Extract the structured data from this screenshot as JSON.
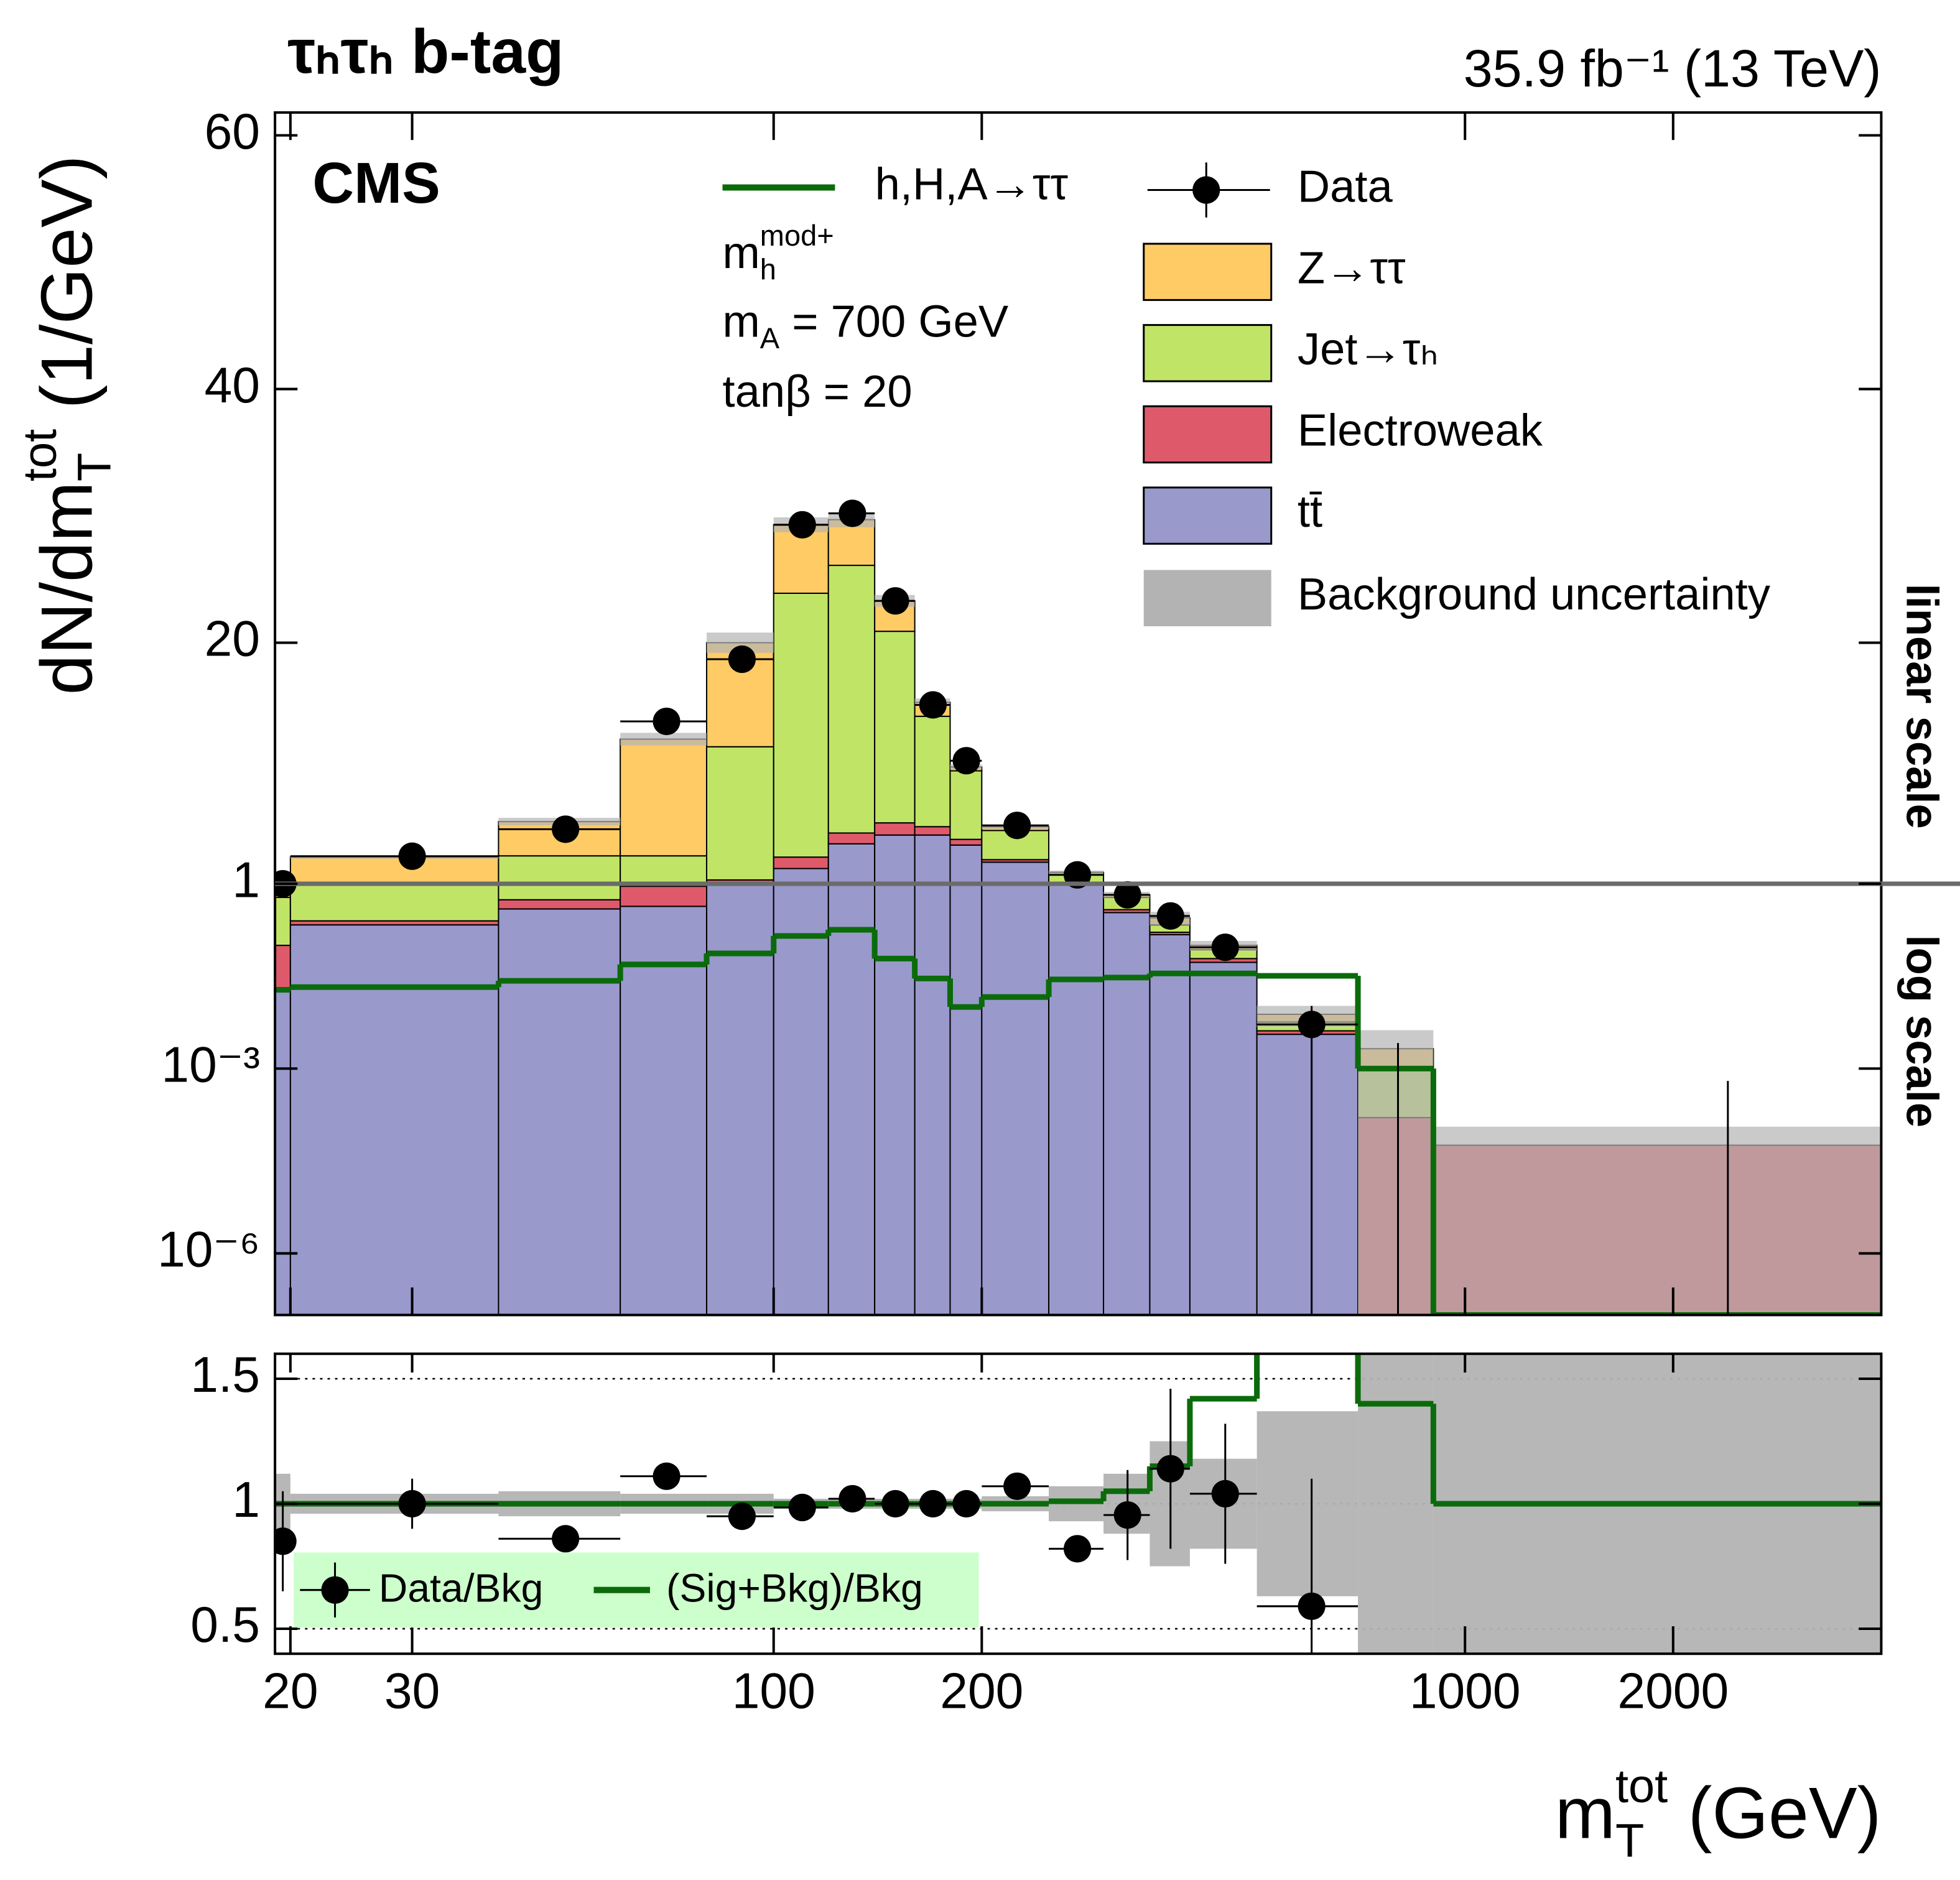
{
  "chart_data": {
    "type": "stacked-histogram",
    "title": "τₕτₕ b-tag",
    "subtitle": "35.9 fb⁻¹ (13 TeV)",
    "experiment": "CMS",
    "annotations": [
      {
        "text": "m",
        "sup": "mod+",
        "sub": "h"
      },
      {
        "text": "m",
        "sub": "A",
        "after": " = 700 GeV"
      },
      {
        "text": "tanβ = 20"
      }
    ],
    "x_label": {
      "text": "m",
      "sup": "tot",
      "sub": "T",
      "after": " (GeV)"
    },
    "y_label": {
      "text": "dN/dm",
      "sup": "tot",
      "sub": "T",
      "after": " (1/GeV)"
    },
    "xscale": "log",
    "xlim": [
      19,
      4000
    ],
    "xticks": [
      20,
      30,
      100,
      200,
      1000,
      2000
    ],
    "bins": [
      19,
      20,
      40,
      60,
      80,
      100,
      120,
      140,
      160,
      180,
      200,
      250,
      300,
      350,
      400,
      500,
      700,
      900,
      4000
    ],
    "ylim": [
      1e-07,
      61.8
    ],
    "ylinear_above": 1,
    "scale_labels": [
      "linear scale",
      "log scale"
    ],
    "yticks": [
      {
        "value": 1e-06,
        "label": "10⁻⁶"
      },
      {
        "value": 0.001,
        "label": "10⁻³"
      },
      1,
      20,
      40,
      60
    ],
    "series": [
      {
        "name": "tt̄",
        "color": "#9999cc",
        "values": [
          0.02,
          0.215,
          0.39,
          0.43,
          1.0,
          2.2,
          4.15,
          4.84,
          4.84,
          4.05,
          2.7,
          1.0,
          0.34,
          0.149,
          0.053,
          0.0036,
          0,
          0
        ]
      },
      {
        "name": "Electroweak",
        "color": "#de5a6a",
        "values": [
          0.08,
          0.035,
          0.16,
          0.48,
          0.3,
          0.9,
          0.85,
          0.96,
          0.66,
          0.45,
          0.2,
          0.05,
          0.04,
          0.014,
          0.008,
          0.0005,
          0.00016,
          5.7e-05
        ]
      },
      {
        "name": "Jet→τₕ",
        "color": "#c0e566",
        "values": [
          0.5,
          0.75,
          2.65,
          2.29,
          10.5,
          20.8,
          21.1,
          15.1,
          8.7,
          5.4,
          2.3,
          0.65,
          0.22,
          0.052,
          0.024,
          0.0016,
          0.00084,
          0
        ]
      },
      {
        "name": "Z→ττ",
        "color": "#fecb65",
        "values": [
          0.5,
          2.1,
          2.7,
          9.2,
          8.2,
          5.4,
          3.6,
          2.4,
          1.1,
          0.3,
          0.3,
          0.2,
          0.06,
          0.065,
          0.015,
          0.0019,
          0.0011,
          0
        ]
      }
    ],
    "uncertainty": {
      "name": "Background uncertainty",
      "color": "#b3b3b3",
      "values": [
        0.12,
        0.04,
        0.05,
        0.04,
        0.04,
        0.02,
        0.02,
        0.02,
        0.02,
        0.02,
        0.03,
        0.07,
        0.12,
        0.25,
        0.18,
        0.37,
        1.0,
        1.0
      ]
    },
    "signal": {
      "name": "h,H,A→ττ",
      "color": "#0b6b0b",
      "values": [
        0.019,
        0.021,
        0.0266,
        0.049,
        0.074,
        0.142,
        0.179,
        0.061,
        0.029,
        0.01,
        0.0145,
        0.028,
        0.03,
        0.035,
        0.035,
        0.032,
        0.001,
        1e-07
      ]
    },
    "data": {
      "name": "Data",
      "color": "#000000",
      "x": [
        19.5,
        30,
        50,
        70,
        90,
        110,
        130,
        150,
        170,
        190,
        225,
        275,
        325,
        375,
        450,
        600,
        800,
        2400
      ],
      "values": [
        1.0,
        3.17,
        5.3,
        13.8,
        18.7,
        29.3,
        30.2,
        23.3,
        15.1,
        10.7,
        5.6,
        1.7,
        0.66,
        0.3,
        0.093,
        0.0052,
        0,
        0
      ],
      "errors": [
        0.2,
        0.3,
        0.3,
        0.45,
        0.5,
        0.55,
        0.6,
        0.5,
        0.4,
        0.35,
        0.2,
        0.15,
        0.1,
        0.06,
        0.02,
        0.0052,
        0.0026,
        0.00063
      ]
    },
    "ratio": {
      "ylim": [
        0.4,
        1.6
      ],
      "yticks": [
        0.5,
        1,
        1.5
      ],
      "grid": true,
      "legend_color": "#ccffcc",
      "data": {
        "name": "Data/Bkg",
        "values": [
          0.85,
          1.0,
          0.86,
          1.11,
          0.95,
          0.985,
          1.02,
          1.0,
          1.0,
          1.0,
          1.07,
          0.82,
          0.955,
          1.14,
          1.04,
          0.59,
          null,
          null
        ],
        "errors": [
          0.2,
          0.1,
          0.05,
          0.04,
          0.03,
          0.03,
          0.03,
          0.03,
          0.03,
          0.03,
          0.04,
          0.05,
          0.18,
          0.32,
          0.28,
          0.51,
          null,
          null
        ]
      },
      "signal": {
        "name": "(Sig+Bkg)/Bkg",
        "values": [
          1.0,
          1.0,
          1.0,
          1.0,
          1.0,
          1.0,
          1.0,
          1.0,
          1.0,
          1.0,
          1.0,
          1.01,
          1.05,
          1.15,
          1.42,
          5.2,
          1.4,
          1.0
        ]
      }
    }
  }
}
